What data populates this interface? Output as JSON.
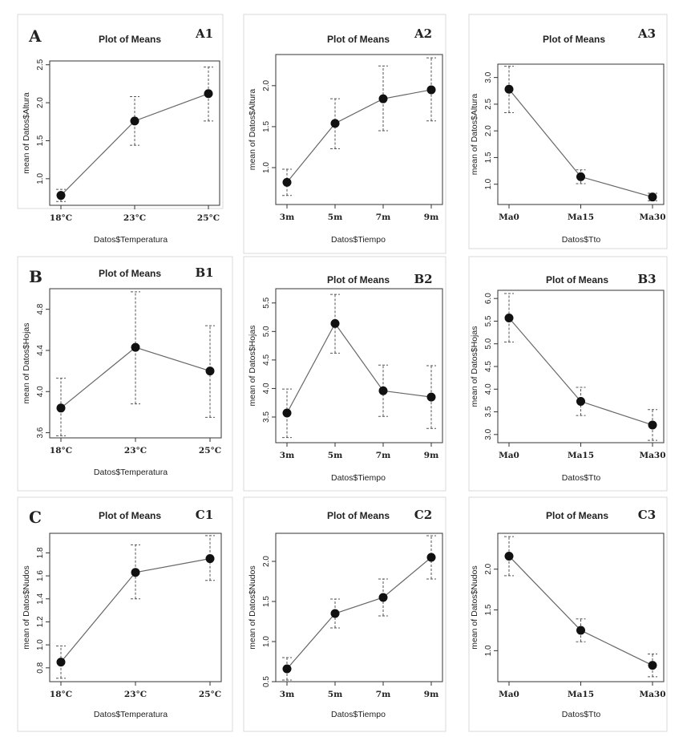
{
  "figure": {
    "row_labels": [
      "A",
      "B",
      "C"
    ]
  },
  "chart_data": [
    {
      "id": "A1",
      "panel_label": "A1",
      "type": "line",
      "title": "Plot of Means",
      "xlabel": "Datos$Temperatura",
      "ylabel": "mean of Datos$Altura",
      "categories": [
        "18°C",
        "23°C",
        "25°C"
      ],
      "values": [
        0.78,
        1.76,
        2.12
      ],
      "ci_low": [
        0.7,
        1.44,
        1.76
      ],
      "ci_high": [
        0.86,
        2.08,
        2.47
      ],
      "ylim": [
        0.65,
        2.55
      ],
      "yticks": [
        1.0,
        1.5,
        2.0,
        2.5
      ],
      "ytick_labels": [
        "1.0",
        "1.5",
        "2.0",
        "2.5"
      ],
      "grid": false
    },
    {
      "id": "A2",
      "panel_label": "A2",
      "type": "line",
      "title": "Plot of Means",
      "xlabel": "Datos$Tiempo",
      "ylabel": "mean of Datos$Altura",
      "categories": [
        "3m",
        "5m",
        "7m",
        "9m"
      ],
      "values": [
        0.82,
        1.54,
        1.84,
        1.95
      ],
      "ci_low": [
        0.66,
        1.23,
        1.45,
        1.57
      ],
      "ci_high": [
        0.98,
        1.84,
        2.24,
        2.34
      ],
      "ylim": [
        0.55,
        2.38
      ],
      "yticks": [
        1.0,
        1.5,
        2.0
      ],
      "ytick_labels": [
        "1.0",
        "1.5",
        "2.0"
      ],
      "grid": false
    },
    {
      "id": "A3",
      "panel_label": "A3",
      "type": "line",
      "title": "Plot of Means",
      "xlabel": "Datos$Tto",
      "ylabel": "mean of Datos$Altura",
      "categories": [
        "Ma0",
        "Ma15",
        "Ma30"
      ],
      "values": [
        2.78,
        1.14,
        0.76
      ],
      "ci_low": [
        2.34,
        1.01,
        0.69
      ],
      "ci_high": [
        3.21,
        1.27,
        0.83
      ],
      "ylim": [
        0.62,
        3.25
      ],
      "yticks": [
        1.0,
        1.5,
        2.0,
        2.5,
        3.0
      ],
      "ytick_labels": [
        "1.0",
        "1.5",
        "2.0",
        "2.5",
        "3.0"
      ],
      "grid": false
    },
    {
      "id": "B1",
      "panel_label": "B1",
      "type": "line",
      "title": "Plot of Means",
      "xlabel": "Datos$Temperatura",
      "ylabel": "mean of Datos$Hojas",
      "categories": [
        "18°C",
        "23°C",
        "25°C"
      ],
      "values": [
        3.84,
        4.43,
        4.2
      ],
      "ci_low": [
        3.57,
        3.88,
        3.75
      ],
      "ci_high": [
        4.13,
        4.97,
        4.64
      ],
      "ylim": [
        3.55,
        5.0
      ],
      "yticks": [
        3.6,
        4.0,
        4.4,
        4.8
      ],
      "ytick_labels": [
        "3.6",
        "4.0",
        "4.4",
        "4.8"
      ],
      "grid": false
    },
    {
      "id": "B2",
      "panel_label": "B2",
      "type": "line",
      "title": "Plot of Means",
      "xlabel": "Datos$Tiempo",
      "ylabel": "mean of Datos$Hojas",
      "categories": [
        "3m",
        "5m",
        "7m",
        "9m"
      ],
      "values": [
        3.57,
        5.14,
        3.96,
        3.85
      ],
      "ci_low": [
        3.14,
        4.62,
        3.51,
        3.3
      ],
      "ci_high": [
        3.99,
        5.65,
        4.41,
        4.4
      ],
      "ylim": [
        3.05,
        5.75
      ],
      "yticks": [
        3.5,
        4.0,
        4.5,
        5.0,
        5.5
      ],
      "ytick_labels": [
        "3.5",
        "4.0",
        "4.5",
        "5.0",
        "5.5"
      ],
      "grid": false
    },
    {
      "id": "B3",
      "panel_label": "B3",
      "type": "line",
      "title": "Plot of Means",
      "xlabel": "Datos$Tto",
      "ylabel": "mean of Datos$Hojas",
      "categories": [
        "Ma0",
        "Ma15",
        "Ma30"
      ],
      "values": [
        5.57,
        3.73,
        3.21
      ],
      "ci_low": [
        5.04,
        3.42,
        2.87
      ],
      "ci_high": [
        6.11,
        4.04,
        3.55
      ],
      "ylim": [
        2.82,
        6.18
      ],
      "yticks": [
        3.0,
        3.5,
        4.0,
        4.5,
        5.0,
        5.5,
        6.0
      ],
      "ytick_labels": [
        "3.0",
        "3.5",
        "4.0",
        "4.5",
        "5.0",
        "5.5",
        "6.0"
      ],
      "grid": false
    },
    {
      "id": "C1",
      "panel_label": "C1",
      "type": "line",
      "title": "Plot of Means",
      "xlabel": "Datos$Temperatura",
      "ylabel": "mean of Datos$Nudos",
      "categories": [
        "18°C",
        "23°C",
        "25°C"
      ],
      "values": [
        0.85,
        1.63,
        1.75
      ],
      "ci_low": [
        0.71,
        1.4,
        1.56
      ],
      "ci_high": [
        0.99,
        1.87,
        1.95
      ],
      "ylim": [
        0.68,
        1.97
      ],
      "yticks": [
        0.8,
        1.0,
        1.2,
        1.4,
        1.6,
        1.8
      ],
      "ytick_labels": [
        "0.8",
        "1.0",
        "1.2",
        "1.4",
        "1.6",
        "1.8"
      ],
      "grid": false
    },
    {
      "id": "C2",
      "panel_label": "C2",
      "type": "line",
      "title": "Plot of Means",
      "xlabel": "Datos$Tiempo",
      "ylabel": "mean of Datos$Nudos",
      "categories": [
        "3m",
        "5m",
        "7m",
        "9m"
      ],
      "values": [
        0.66,
        1.35,
        1.55,
        2.05
      ],
      "ci_low": [
        0.52,
        1.17,
        1.32,
        1.78
      ],
      "ci_high": [
        0.8,
        1.53,
        1.78,
        2.32
      ],
      "ylim": [
        0.5,
        2.35
      ],
      "yticks": [
        0.5,
        1.0,
        1.5,
        2.0
      ],
      "ytick_labels": [
        "0.5",
        "1.0",
        "1.5",
        "2.0"
      ],
      "grid": false
    },
    {
      "id": "C3",
      "panel_label": "C3",
      "type": "line",
      "title": "Plot of Means",
      "xlabel": "Datos$Tto",
      "ylabel": "mean of Datos$Nudos",
      "categories": [
        "Ma0",
        "Ma15",
        "Ma30"
      ],
      "values": [
        2.16,
        1.25,
        0.82
      ],
      "ci_low": [
        1.92,
        1.11,
        0.68
      ],
      "ci_high": [
        2.4,
        1.39,
        0.96
      ],
      "ylim": [
        0.62,
        2.44
      ],
      "yticks": [
        1.0,
        1.5,
        2.0
      ],
      "ytick_labels": [
        "1.0",
        "1.5",
        "2.0"
      ],
      "grid": false
    }
  ]
}
